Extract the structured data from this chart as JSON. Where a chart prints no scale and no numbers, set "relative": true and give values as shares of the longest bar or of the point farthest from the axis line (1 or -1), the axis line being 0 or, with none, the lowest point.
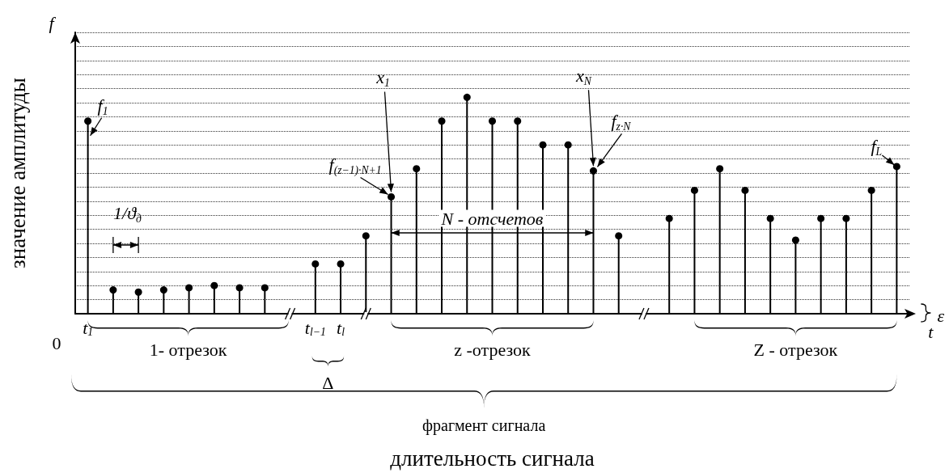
{
  "chart_data": {
    "type": "lollipop",
    "relative": true,
    "color": "#000000",
    "marker": "circle",
    "grid": "y",
    "xlabel": "длительность сигнала",
    "ylabel": "значение амплитуды",
    "categories": [
      "t$_{1}$",
      null,
      null,
      null,
      null,
      null,
      null,
      null,
      null,
      "t$_{l−1}$",
      "t$_{l}$",
      null,
      null,
      null,
      null,
      null,
      null,
      null,
      null,
      null,
      null,
      null,
      null,
      null,
      null,
      null,
      null,
      null,
      null,
      null,
      null,
      null,
      null
    ],
    "values": [
      0.89,
      0.11,
      0.1,
      0.11,
      0.12,
      0.13,
      0.12,
      0.12,
      null,
      0.23,
      0.23,
      0.36,
      0.54,
      0.67,
      0.89,
      1,
      0.89,
      0.89,
      0.78,
      0.78,
      0.66,
      0.36,
      null,
      0.44,
      0.57,
      0.67,
      0.57,
      0.44,
      0.34,
      0.44,
      0.44,
      0.57,
      0.68
    ],
    "annotations": [
      "f$_{1}$",
      "x$_{1}$",
      "f$_{(z−1)·N+1}$",
      "x$_{N}$",
      "f$_{z·N}$",
      "f$_{L}$",
      "1/ϑ$_{д}$",
      "N - отсчетов",
      "ε",
      "0",
      "1- отрезок",
      "z -отрезок",
      "Z - отрезок",
      "Δ",
      "фрагмент сигнала",
      "f⃗",
      "t"
    ]
  }
}
